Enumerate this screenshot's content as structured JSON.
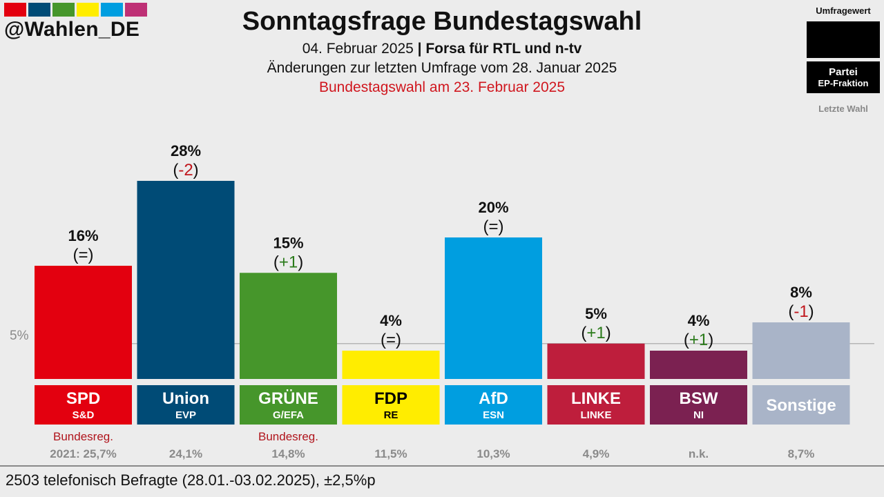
{
  "header": {
    "handle": "@Wahlen_DE",
    "title": "Sonntagsfrage Bundestagswahl",
    "date": "04. Februar 2025",
    "separator": " | ",
    "institute": "Forsa für RTL und n-tv",
    "changes_note": "Änderungen zur letzten Umfrage vom 28. Januar 2025",
    "election_note": "Bundestagswahl am 23. Februar 2025",
    "brand_colors": [
      "#e3000f",
      "#004b76",
      "#46962b",
      "#ffed00",
      "#009ee0",
      "#be3075"
    ]
  },
  "legend": {
    "poll_value": "Umfragewert",
    "party": "Partei",
    "ep_group": "EP-Fraktion",
    "last_election": "Letzte Wahl"
  },
  "footer": {
    "text": "2503 telefonisch Befragte (28.01.-03.02.2025), ±2,5%p"
  },
  "chart_data": {
    "type": "bar",
    "ylim": [
      0,
      30
    ],
    "threshold": {
      "value": 5,
      "label": "5%"
    },
    "categories": [
      "SPD",
      "Union",
      "GRÜNE",
      "FDP",
      "AfD",
      "LINKE",
      "BSW",
      "Sonstige"
    ],
    "values": [
      16,
      28,
      15,
      4,
      20,
      5,
      4,
      8
    ],
    "value_labels": [
      "16%",
      "28%",
      "15%",
      "4%",
      "20%",
      "5%",
      "4%",
      "8%"
    ],
    "changes": [
      "(=)",
      "(-2)",
      "(+1)",
      "(=)",
      "(=)",
      "(+1)",
      "(+1)",
      "(-1)"
    ],
    "change_signs": [
      "0",
      "-",
      "+",
      "0",
      "0",
      "+",
      "+",
      "-"
    ],
    "ep_groups": [
      "S&D",
      "EVP",
      "G/EFA",
      "RE",
      "ESN",
      "LINKE",
      "NI",
      ""
    ],
    "government_label": "Bundesreg.",
    "government": [
      true,
      false,
      true,
      false,
      false,
      false,
      false,
      false
    ],
    "last_election": [
      "2021: 25,7%",
      "24,1%",
      "14,8%",
      "11,5%",
      "10,3%",
      "4,9%",
      "n.k.",
      "8,7%"
    ],
    "colors": [
      "#e3000f",
      "#004b76",
      "#46962b",
      "#ffed00",
      "#009ee0",
      "#be1e3c",
      "#7b2151",
      "#a9b4c8"
    ],
    "label_colors": [
      "#ffffff",
      "#ffffff",
      "#ffffff",
      "#000000",
      "#ffffff",
      "#ffffff",
      "#ffffff",
      "#ffffff"
    ],
    "change_colors": {
      "+": "#2a7a1a",
      "-": "#c0161c",
      "0": "#111111"
    }
  }
}
